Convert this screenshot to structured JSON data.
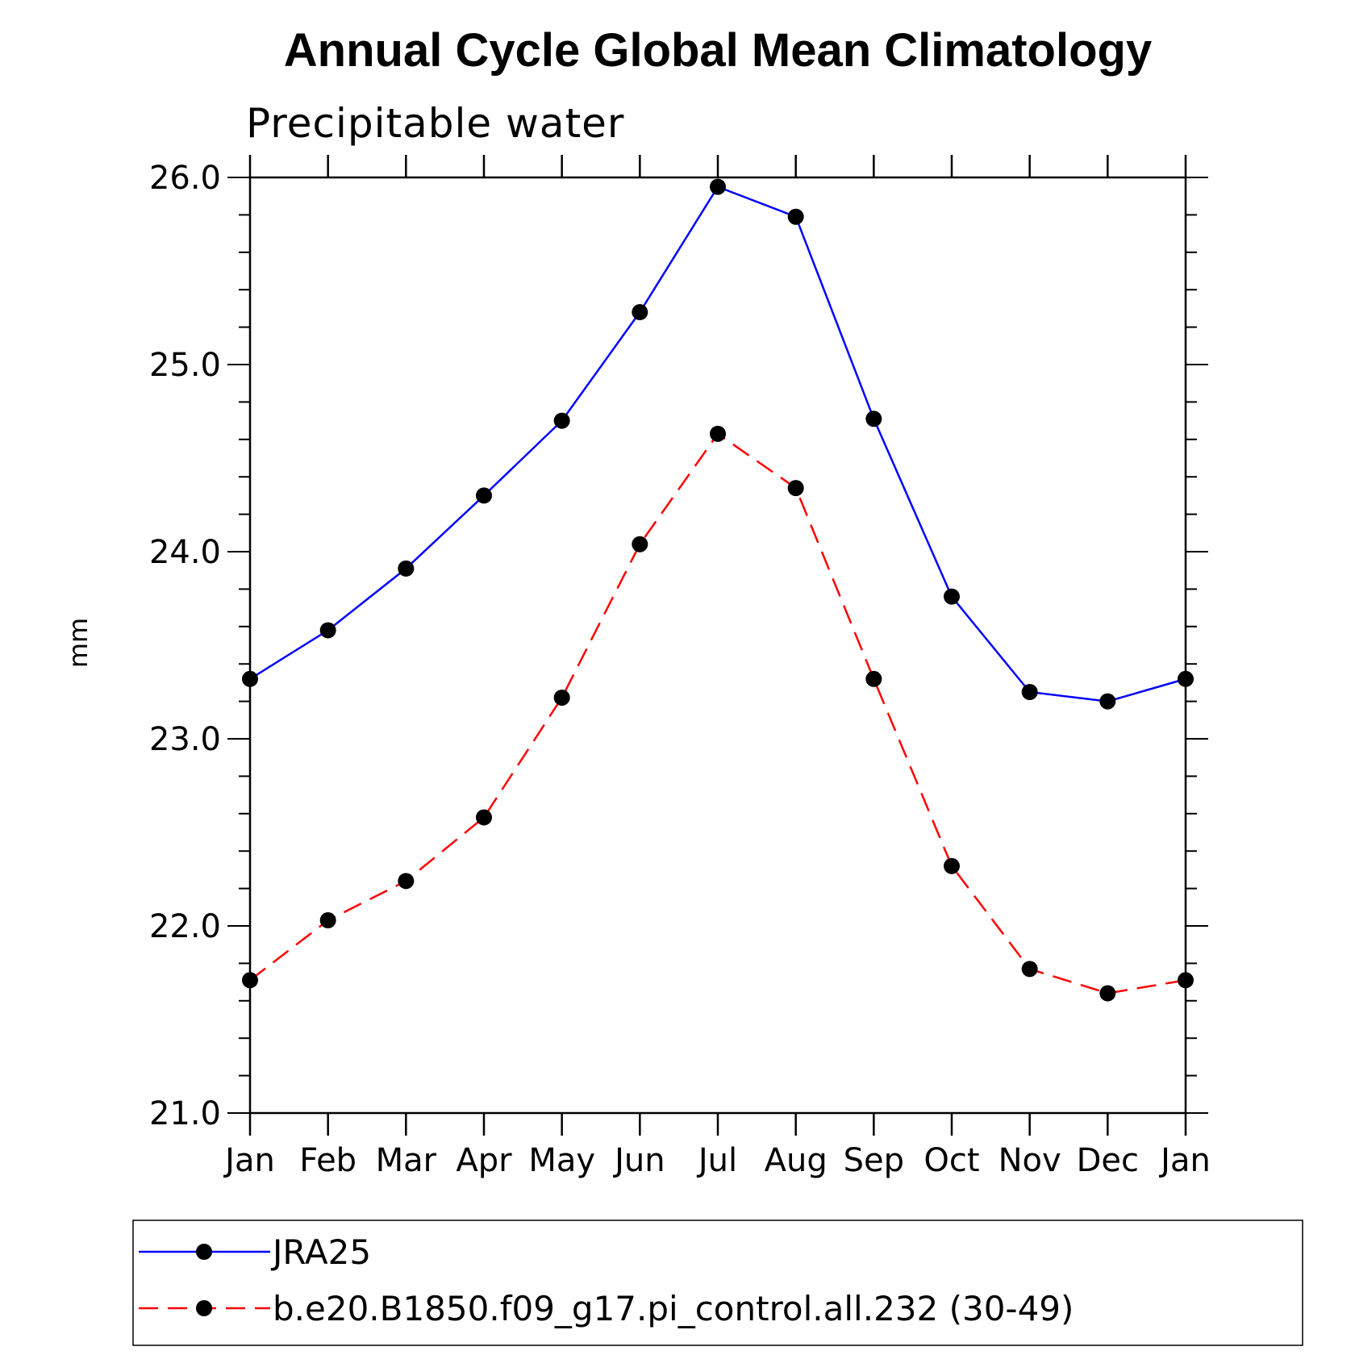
{
  "chart_data": {
    "type": "line",
    "title": "Annual Cycle Global Mean Climatology",
    "subtitle": "Precipitable water",
    "xlabel": "",
    "ylabel": "mm",
    "categories": [
      "Jan",
      "Feb",
      "Mar",
      "Apr",
      "May",
      "Jun",
      "Jul",
      "Aug",
      "Sep",
      "Oct",
      "Nov",
      "Dec",
      "Jan"
    ],
    "ylim": [
      21.0,
      26.0
    ],
    "yticks": [
      "21.0",
      "22.0",
      "23.0",
      "24.0",
      "25.0",
      "26.0"
    ],
    "grid": false,
    "legend_position": "bottom",
    "series": [
      {
        "name": "JRA25",
        "color": "#0000ff",
        "line_style": "solid",
        "marker": "filled-circle",
        "values": [
          23.32,
          23.58,
          23.91,
          24.3,
          24.7,
          25.28,
          25.95,
          25.79,
          24.71,
          23.76,
          23.25,
          23.2,
          23.32
        ]
      },
      {
        "name": "b.e20.B1850.f09_g17.pi_control.all.232 (30-49)",
        "color": "#ff0000",
        "line_style": "dashed",
        "marker": "filled-circle",
        "values": [
          21.71,
          22.03,
          22.24,
          22.58,
          23.22,
          24.04,
          24.63,
          24.34,
          23.32,
          22.32,
          21.77,
          21.64,
          21.71
        ]
      }
    ]
  }
}
